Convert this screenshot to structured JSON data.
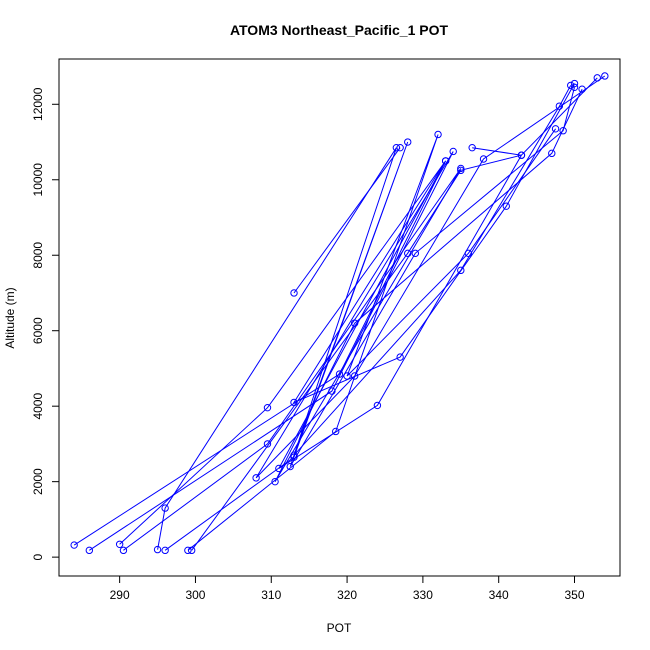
{
  "chart_data": {
    "type": "scatter",
    "title": "ATOM3 Northeast_Pacific_1 POT",
    "xlabel": "POT",
    "ylabel": "Altitude (m)",
    "xlim": [
      282,
      356
    ],
    "ylim": [
      -500,
      13200
    ],
    "xticks": [
      290,
      300,
      310,
      320,
      330,
      340,
      350
    ],
    "yticks": [
      0,
      2000,
      4000,
      6000,
      8000,
      10000,
      12000
    ],
    "grid": false,
    "legend": "none",
    "color": "#0000ff",
    "series": [
      {
        "x": [
          284,
          319,
          333,
          311,
          324,
          343,
          353
        ],
        "y": [
          320,
          4850,
          10500,
          2350,
          4020,
          10650,
          12700
        ]
      },
      {
        "x": [
          286,
          318,
          334,
          308,
          321,
          338,
          354
        ],
        "y": [
          180,
          4400,
          10750,
          2100,
          4800,
          10550,
          12750
        ]
      },
      {
        "x": [
          290,
          309.5,
          333,
          313,
          327,
          341,
          350
        ],
        "y": [
          340,
          3960,
          10500,
          4100,
          5300,
          9300,
          12550
        ]
      },
      {
        "x": [
          290.5,
          309.5,
          335,
          310.5,
          321,
          347,
          351
        ],
        "y": [
          180,
          3000,
          10300,
          2000,
          6200,
          10700,
          12400
        ]
      },
      {
        "x": [
          295,
          296,
          326.5,
          312.5,
          329,
          348.5,
          350
        ],
        "y": [
          200,
          1300,
          10850,
          2400,
          8050,
          11300,
          12450
        ]
      },
      {
        "x": [
          296,
          313,
          328,
          313,
          335,
          348,
          349.5
        ],
        "y": [
          180,
          2650,
          11000,
          2700,
          7600,
          11950,
          12500
        ]
      },
      {
        "x": [
          299,
          318.5,
          332,
          320,
          336,
          347.5
        ],
        "y": [
          180,
          3330,
          11200,
          4800,
          8050,
          11350
        ]
      },
      {
        "x": [
          299.5,
          328,
          335,
          343,
          336.5
        ],
        "y": [
          180,
          8050,
          10250,
          10650,
          10850
        ]
      },
      {
        "x": [
          313,
          327
        ],
        "y": [
          7000,
          10850
        ]
      }
    ]
  }
}
